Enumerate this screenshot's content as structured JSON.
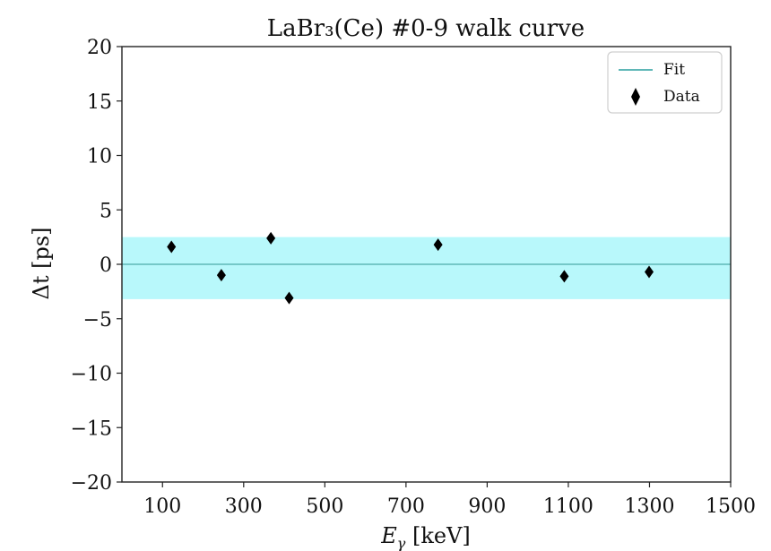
{
  "chart_data": {
    "type": "scatter",
    "title": "LaBr₃(Ce) #0-9 walk curve",
    "xlabel": "E_γ [keV]",
    "xlabel_main": "E",
    "xlabel_sub": "γ",
    "xlabel_unit": " [keV]",
    "ylabel": "Δt [ps]",
    "xlim": [
      0,
      1500
    ],
    "ylim": [
      -20,
      20
    ],
    "xticks": [
      100,
      300,
      500,
      700,
      900,
      1100,
      1300,
      1500
    ],
    "yticks": [
      -20,
      -15,
      -10,
      -5,
      0,
      5,
      10,
      15,
      20
    ],
    "ytick_labels": [
      "−20",
      "−15",
      "−10",
      "−5",
      "0",
      "5",
      "10",
      "15",
      "20"
    ],
    "grid": false,
    "legend_position": "top-right",
    "series": [
      {
        "name": "Data",
        "marker": "thin-diamond",
        "color": "#000000",
        "points": [
          {
            "x": 122,
            "y": 1.6
          },
          {
            "x": 245,
            "y": -1.0
          },
          {
            "x": 367,
            "y": 2.4
          },
          {
            "x": 412,
            "y": -3.1
          },
          {
            "x": 779,
            "y": 1.8
          },
          {
            "x": 1090,
            "y": -1.1
          },
          {
            "x": 1299,
            "y": -0.7
          }
        ]
      },
      {
        "name": "Fit",
        "kind": "line",
        "color": "#5fb7b7",
        "y": 0,
        "band": [
          -3.2,
          2.5
        ],
        "band_color": "#b8f8fb"
      }
    ]
  }
}
